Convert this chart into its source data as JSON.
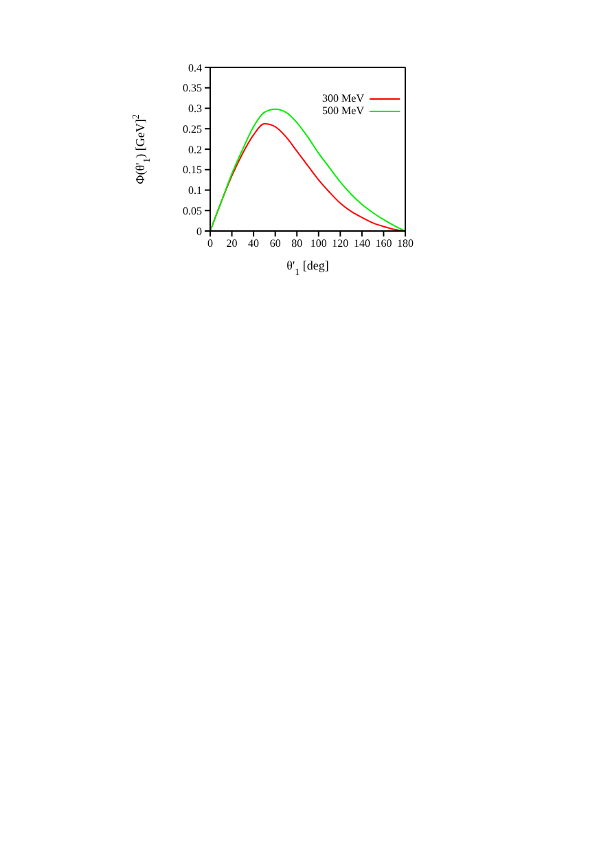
{
  "chart_data": {
    "type": "line",
    "xlabel": "θ'$_{1}$ [deg]",
    "ylabel": "Φ(θ'$_{1}$) [GeV]$^{2}$",
    "x": [
      0,
      10,
      20,
      30,
      40,
      50,
      60,
      70,
      80,
      90,
      100,
      110,
      120,
      130,
      140,
      150,
      160,
      170,
      180
    ],
    "series": [
      {
        "name": "300 MeV",
        "color": "#ff0000",
        "values": [
          0,
          0.07,
          0.135,
          0.19,
          0.235,
          0.262,
          0.255,
          0.23,
          0.195,
          0.16,
          0.125,
          0.095,
          0.068,
          0.048,
          0.033,
          0.02,
          0.011,
          0.004,
          0
        ]
      },
      {
        "name": "500 MeV",
        "color": "#00ee00",
        "values": [
          0,
          0.07,
          0.14,
          0.2,
          0.255,
          0.29,
          0.298,
          0.29,
          0.265,
          0.23,
          0.19,
          0.155,
          0.12,
          0.09,
          0.065,
          0.045,
          0.028,
          0.013,
          0
        ]
      }
    ],
    "xlim": [
      0,
      180
    ],
    "xticks": [
      0,
      20,
      40,
      60,
      80,
      100,
      120,
      140,
      160,
      180
    ],
    "ylim": [
      0,
      0.4
    ],
    "yticks": [
      0,
      0.05,
      0.1,
      0.15,
      0.2,
      0.25,
      0.3,
      0.35,
      0.4
    ],
    "grid": false,
    "legend": "top right",
    "marker": "none",
    "line_style": "solid"
  }
}
